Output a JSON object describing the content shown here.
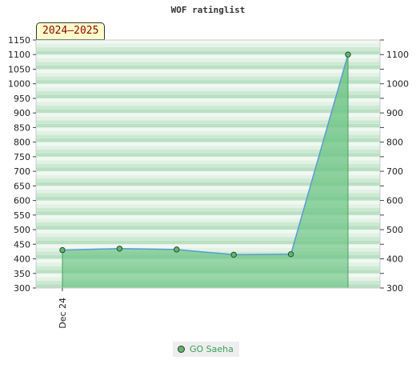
{
  "chart_data": {
    "type": "area",
    "title": "WOF ratinglist",
    "badge": "2024–2025",
    "x": [
      0,
      1,
      2,
      3,
      4,
      5
    ],
    "x_tick_labels": [
      {
        "x": 0,
        "label": "Dec 24"
      }
    ],
    "series": [
      {
        "name": "GO Saeha",
        "values": [
          430,
          435,
          432,
          414,
          416,
          1100
        ],
        "color": "#5cb874"
      }
    ],
    "ylim": [
      300,
      1150
    ],
    "y_ticks_left": [
      300,
      350,
      400,
      450,
      500,
      550,
      600,
      650,
      700,
      750,
      800,
      850,
      900,
      950,
      1000,
      1050,
      1100,
      1150
    ],
    "y_ticks_right": [
      300,
      400,
      500,
      600,
      700,
      800,
      900,
      1000,
      1100
    ],
    "grid": true,
    "legend_position": "bottom-center",
    "colors": {
      "fill": "#6cc484",
      "line": "#5b9bd5",
      "band_dark": "#b9e0c2",
      "band_light": "#f1f8f2"
    }
  }
}
